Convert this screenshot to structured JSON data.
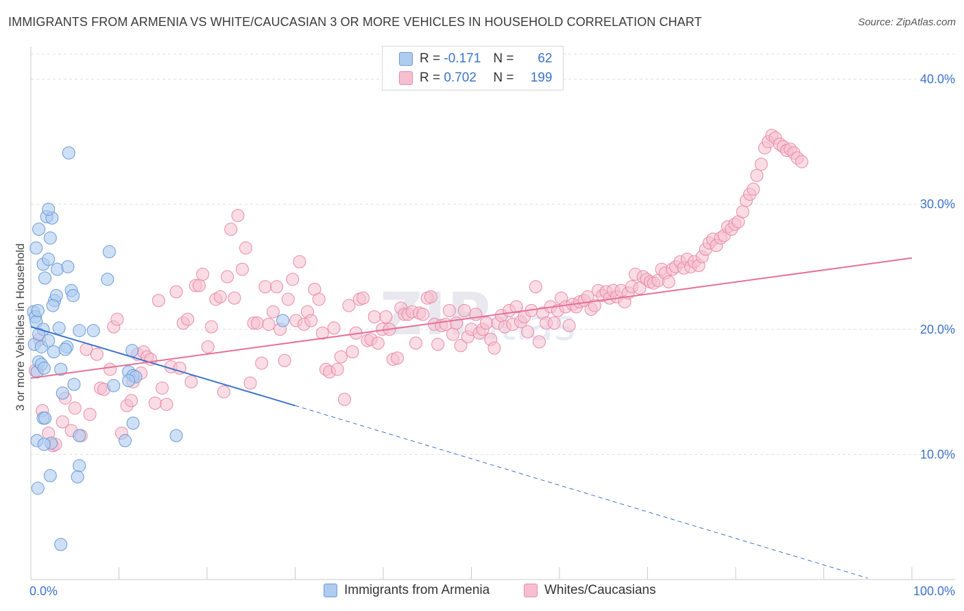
{
  "title": "IMMIGRANTS FROM ARMENIA VS WHITE/CAUCASIAN 3 OR MORE VEHICLES IN HOUSEHOLD CORRELATION CHART",
  "source": "Source: ZipAtlas.com",
  "legend": {
    "r_label": "R =",
    "n_label": "N =",
    "rows": [
      {
        "r": "-0.171",
        "n": "62"
      },
      {
        "r": "0.702",
        "n": "199"
      }
    ]
  },
  "colors": {
    "blue_fill": "#aecbf0",
    "blue_stroke": "#6a9ad8",
    "blue_line": "#3a72cc",
    "pink_fill": "#f6bfd0",
    "pink_stroke": "#e88aa8",
    "pink_line": "#e56f96",
    "tick_text": "#3b73c9"
  },
  "chart_data": {
    "type": "scatter",
    "title": "IMMIGRANTS FROM ARMENIA VS WHITE/CAUCASIAN 3 OR MORE VEHICLES IN HOUSEHOLD CORRELATION CHART",
    "xlabel": "",
    "ylabel": "3 or more Vehicles in Household",
    "xlim": [
      0,
      100
    ],
    "ylim": [
      0,
      42
    ],
    "x_tick_labels": [
      "0.0%",
      "100.0%"
    ],
    "y_ticks": [
      10,
      20,
      30,
      40
    ],
    "y_tick_labels": [
      "10.0%",
      "20.0%",
      "30.0%",
      "40.0%"
    ],
    "grid": "horizontal dashed",
    "legend_position": "top-center",
    "series": [
      {
        "name": "Immigrants from Armenia",
        "r": -0.171,
        "n": 62,
        "trend": {
          "x0": 0,
          "y0": 20.2,
          "x1": 30,
          "y1": 13.9,
          "dash_to_x": 95,
          "dash_to_y": 0.1
        },
        "points": [
          [
            0.3,
            21.4
          ],
          [
            0.5,
            21.0
          ],
          [
            0.6,
            20.6
          ],
          [
            0.8,
            21.5
          ],
          [
            0.4,
            18.8
          ],
          [
            0.7,
            16.6
          ],
          [
            0.9,
            17.4
          ],
          [
            1.2,
            17.2
          ],
          [
            0.6,
            26.5
          ],
          [
            0.9,
            28.0
          ],
          [
            1.4,
            25.2
          ],
          [
            1.6,
            24.1
          ],
          [
            2.0,
            25.6
          ],
          [
            2.2,
            27.3
          ],
          [
            1.8,
            29.0
          ],
          [
            2.4,
            28.9
          ],
          [
            2.0,
            29.6
          ],
          [
            2.7,
            22.3
          ],
          [
            2.9,
            22.7
          ],
          [
            2.5,
            21.9
          ],
          [
            2.6,
            18.2
          ],
          [
            3.0,
            24.8
          ],
          [
            1.4,
            20.0
          ],
          [
            3.4,
            16.8
          ],
          [
            1.5,
            16.9
          ],
          [
            3.6,
            14.9
          ],
          [
            1.4,
            12.9
          ],
          [
            1.6,
            12.9
          ],
          [
            2.3,
            10.9
          ],
          [
            0.7,
            11.1
          ],
          [
            1.5,
            10.8
          ],
          [
            2.2,
            8.3
          ],
          [
            0.8,
            7.3
          ],
          [
            3.4,
            2.8
          ],
          [
            4.3,
            34.1
          ],
          [
            4.2,
            25.0
          ],
          [
            4.6,
            23.1
          ],
          [
            4.8,
            22.7
          ],
          [
            5.5,
            19.9
          ],
          [
            7.1,
            19.9
          ],
          [
            4.1,
            18.6
          ],
          [
            3.9,
            18.4
          ],
          [
            4.9,
            15.6
          ],
          [
            5.5,
            11.5
          ],
          [
            5.5,
            9.1
          ],
          [
            5.3,
            8.2
          ],
          [
            8.9,
            26.2
          ],
          [
            8.7,
            24.0
          ],
          [
            9.4,
            15.5
          ],
          [
            11.5,
            18.3
          ],
          [
            11.1,
            16.6
          ],
          [
            11.6,
            16.3
          ],
          [
            11.9,
            16.2
          ],
          [
            11.1,
            15.9
          ],
          [
            11.6,
            12.5
          ],
          [
            10.7,
            11.1
          ],
          [
            16.5,
            11.5
          ],
          [
            28.6,
            20.7
          ],
          [
            0.9,
            19.6
          ],
          [
            1.2,
            18.6
          ],
          [
            2.0,
            19.1
          ],
          [
            3.2,
            20.1
          ]
        ]
      },
      {
        "name": "Whites/Caucasians",
        "r": 0.702,
        "n": 199,
        "trend": {
          "x0": 0,
          "y0": 16.1,
          "x1": 100,
          "y1": 25.7
        },
        "points": [
          [
            0.5,
            16.7
          ],
          [
            1.0,
            19.2
          ],
          [
            1.3,
            13.5
          ],
          [
            2.0,
            11.7
          ],
          [
            2.5,
            10.7
          ],
          [
            2.8,
            10.8
          ],
          [
            3.6,
            12.6
          ],
          [
            3.9,
            14.5
          ],
          [
            4.6,
            11.9
          ],
          [
            5.0,
            13.7
          ],
          [
            5.7,
            11.5
          ],
          [
            6.3,
            18.4
          ],
          [
            6.7,
            13.2
          ],
          [
            7.5,
            18.0
          ],
          [
            7.9,
            15.3
          ],
          [
            8.3,
            15.2
          ],
          [
            9.0,
            16.8
          ],
          [
            9.4,
            20.2
          ],
          [
            9.8,
            20.8
          ],
          [
            10.3,
            11.7
          ],
          [
            10.9,
            13.9
          ],
          [
            11.4,
            14.3
          ],
          [
            11.6,
            15.8
          ],
          [
            12.1,
            18.0
          ],
          [
            12.5,
            16.5
          ],
          [
            12.8,
            18.2
          ],
          [
            13.2,
            17.8
          ],
          [
            13.6,
            17.6
          ],
          [
            14.1,
            14.1
          ],
          [
            14.5,
            22.3
          ],
          [
            14.9,
            15.3
          ],
          [
            15.4,
            14.0
          ],
          [
            15.9,
            17.0
          ],
          [
            16.5,
            23.0
          ],
          [
            16.9,
            16.9
          ],
          [
            17.3,
            20.5
          ],
          [
            17.8,
            20.8
          ],
          [
            18.2,
            15.8
          ],
          [
            18.7,
            23.5
          ],
          [
            19.1,
            23.5
          ],
          [
            19.5,
            24.4
          ],
          [
            20.1,
            18.6
          ],
          [
            20.5,
            20.2
          ],
          [
            21.0,
            22.4
          ],
          [
            21.5,
            22.6
          ],
          [
            21.9,
            15.0
          ],
          [
            22.3,
            24.2
          ],
          [
            22.7,
            28.0
          ],
          [
            23.1,
            22.5
          ],
          [
            23.5,
            29.1
          ],
          [
            24.0,
            24.8
          ],
          [
            24.4,
            26.5
          ],
          [
            24.9,
            15.7
          ],
          [
            25.3,
            20.5
          ],
          [
            25.7,
            20.5
          ],
          [
            26.2,
            17.3
          ],
          [
            26.6,
            23.4
          ],
          [
            27.0,
            20.4
          ],
          [
            27.5,
            21.4
          ],
          [
            27.9,
            23.4
          ],
          [
            28.3,
            20.0
          ],
          [
            28.8,
            17.5
          ],
          [
            29.2,
            22.4
          ],
          [
            29.7,
            24.0
          ],
          [
            30.1,
            20.7
          ],
          [
            30.5,
            25.4
          ],
          [
            31.0,
            20.4
          ],
          [
            31.4,
            21.4
          ],
          [
            31.8,
            20.7
          ],
          [
            32.2,
            23.2
          ],
          [
            32.7,
            22.4
          ],
          [
            33.1,
            19.7
          ],
          [
            33.5,
            16.8
          ],
          [
            33.9,
            16.6
          ],
          [
            34.4,
            20.1
          ],
          [
            34.8,
            16.8
          ],
          [
            35.2,
            17.8
          ],
          [
            35.6,
            14.4
          ],
          [
            36.1,
            21.9
          ],
          [
            36.5,
            18.2
          ],
          [
            36.9,
            19.7
          ],
          [
            37.3,
            22.4
          ],
          [
            37.7,
            22.5
          ],
          [
            38.2,
            19.1
          ],
          [
            38.6,
            19.2
          ],
          [
            39.0,
            21.0
          ],
          [
            39.4,
            18.9
          ],
          [
            39.9,
            20.0
          ],
          [
            40.3,
            21.0
          ],
          [
            40.7,
            20.0
          ],
          [
            41.1,
            17.6
          ],
          [
            41.6,
            17.7
          ],
          [
            42.0,
            21.7
          ],
          [
            42.4,
            21.2
          ],
          [
            42.8,
            21.2
          ],
          [
            43.3,
            21.4
          ],
          [
            43.7,
            18.9
          ],
          [
            44.1,
            21.3
          ],
          [
            44.5,
            21.2
          ],
          [
            45.0,
            22.5
          ],
          [
            45.4,
            22.6
          ],
          [
            45.8,
            20.4
          ],
          [
            46.2,
            18.8
          ],
          [
            46.6,
            20.3
          ],
          [
            47.1,
            20.4
          ],
          [
            47.5,
            21.5
          ],
          [
            47.9,
            19.6
          ],
          [
            48.3,
            20.5
          ],
          [
            48.8,
            18.7
          ],
          [
            49.2,
            21.5
          ],
          [
            49.6,
            19.4
          ],
          [
            50.0,
            20.0
          ],
          [
            50.5,
            21.2
          ],
          [
            50.9,
            19.7
          ],
          [
            51.3,
            20.0
          ],
          [
            51.7,
            20.5
          ],
          [
            52.2,
            19.2
          ],
          [
            52.6,
            18.5
          ],
          [
            53.0,
            20.5
          ],
          [
            53.4,
            21.1
          ],
          [
            53.8,
            20.2
          ],
          [
            54.3,
            21.5
          ],
          [
            54.7,
            20.4
          ],
          [
            55.1,
            21.8
          ],
          [
            55.6,
            20.6
          ],
          [
            56.0,
            21.0
          ],
          [
            56.4,
            19.8
          ],
          [
            56.8,
            21.5
          ],
          [
            57.3,
            23.4
          ],
          [
            57.7,
            19.0
          ],
          [
            58.1,
            21.3
          ],
          [
            58.5,
            20.5
          ],
          [
            59.0,
            21.8
          ],
          [
            59.4,
            20.5
          ],
          [
            59.8,
            21.5
          ],
          [
            60.2,
            22.5
          ],
          [
            60.7,
            21.8
          ],
          [
            61.1,
            20.3
          ],
          [
            61.5,
            22.0
          ],
          [
            61.9,
            21.8
          ],
          [
            62.3,
            22.2
          ],
          [
            62.8,
            22.3
          ],
          [
            63.2,
            22.6
          ],
          [
            63.6,
            21.6
          ],
          [
            64.0,
            21.9
          ],
          [
            64.4,
            23.1
          ],
          [
            64.9,
            22.7
          ],
          [
            65.3,
            23.0
          ],
          [
            65.7,
            22.5
          ],
          [
            66.1,
            23.1
          ],
          [
            66.5,
            22.6
          ],
          [
            67.0,
            23.1
          ],
          [
            67.4,
            22.2
          ],
          [
            67.8,
            22.9
          ],
          [
            68.2,
            23.4
          ],
          [
            68.6,
            24.4
          ],
          [
            69.1,
            23.3
          ],
          [
            69.5,
            24.2
          ],
          [
            69.9,
            24.0
          ],
          [
            70.3,
            23.8
          ],
          [
            70.7,
            23.7
          ],
          [
            71.2,
            23.9
          ],
          [
            71.6,
            24.8
          ],
          [
            72.0,
            24.5
          ],
          [
            72.4,
            23.8
          ],
          [
            72.8,
            24.8
          ],
          [
            73.2,
            25.0
          ],
          [
            73.7,
            25.4
          ],
          [
            74.1,
            24.9
          ],
          [
            74.5,
            25.6
          ],
          [
            74.9,
            25.0
          ],
          [
            75.3,
            25.4
          ],
          [
            75.8,
            25.1
          ],
          [
            76.2,
            25.8
          ],
          [
            76.6,
            26.4
          ],
          [
            77.0,
            26.9
          ],
          [
            77.4,
            27.2
          ],
          [
            77.8,
            26.7
          ],
          [
            78.3,
            27.3
          ],
          [
            78.7,
            27.5
          ],
          [
            79.1,
            28.2
          ],
          [
            79.5,
            28.0
          ],
          [
            79.9,
            28.4
          ],
          [
            80.3,
            28.6
          ],
          [
            80.8,
            29.4
          ],
          [
            81.2,
            30.3
          ],
          [
            81.6,
            30.8
          ],
          [
            82.0,
            31.2
          ],
          [
            82.4,
            32.3
          ],
          [
            82.9,
            33.2
          ],
          [
            83.3,
            34.5
          ],
          [
            83.7,
            35.0
          ],
          [
            84.1,
            35.5
          ],
          [
            84.5,
            35.3
          ],
          [
            85.0,
            34.8
          ],
          [
            85.4,
            34.6
          ],
          [
            85.8,
            34.3
          ],
          [
            86.2,
            34.4
          ],
          [
            86.6,
            34.1
          ],
          [
            87.0,
            33.7
          ],
          [
            87.5,
            33.4
          ]
        ]
      }
    ]
  },
  "bottom_legend": [
    {
      "label": "Immigrants from Armenia"
    },
    {
      "label": "Whites/Caucasians"
    }
  ]
}
